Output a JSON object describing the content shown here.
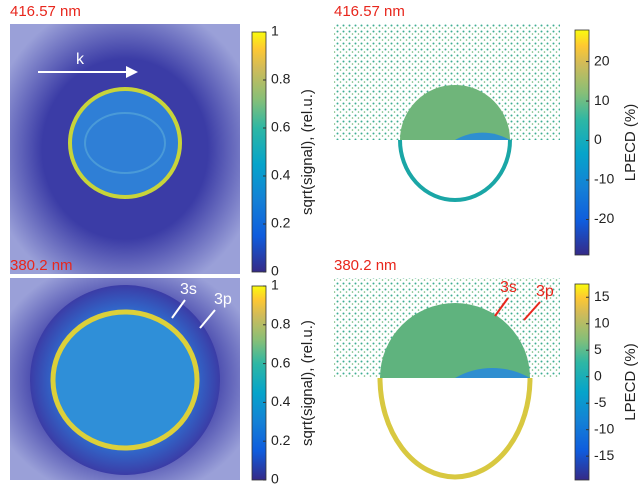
{
  "panels": [
    {
      "label": "416.57 nm",
      "annotations": [
        "k"
      ],
      "colorbar": {
        "label": "sqrt(signal), (rel.u.)",
        "lim": [
          0,
          1.0
        ],
        "ticks": [
          0,
          0.2,
          0.4,
          0.6,
          0.8,
          1
        ]
      }
    },
    {
      "label": "416.57 nm",
      "annotations": [],
      "colorbar": {
        "label": "LPECD (%)",
        "lim": [
          -29,
          28
        ],
        "ticks": [
          -20,
          -10,
          0,
          10,
          20
        ]
      }
    },
    {
      "label": "380.2 nm",
      "annotations": [
        "3s",
        "3p"
      ],
      "colorbar": {
        "label": "sqrt(signal), (rel.u.)",
        "lim": [
          0,
          1.0
        ],
        "ticks": [
          0,
          0.2,
          0.4,
          0.6,
          0.8,
          1
        ]
      }
    },
    {
      "label": "380.2 nm",
      "annotations": [
        "3s",
        "3p"
      ],
      "colorbar": {
        "label": "LPECD (%)",
        "lim": [
          -19.5,
          17.5
        ],
        "ticks": [
          -15,
          -10,
          -5,
          0,
          5,
          10,
          15
        ]
      }
    }
  ]
}
